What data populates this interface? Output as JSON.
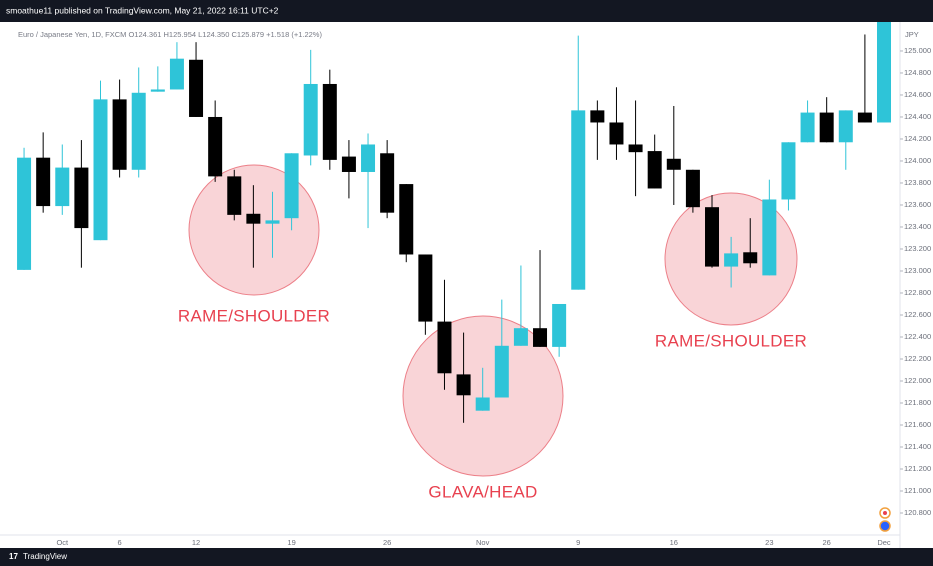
{
  "chart_data": {
    "type": "candlestick",
    "header": "smoathue11 published on TradingView.com, May 21, 2022 16:11 UTC+2",
    "legend_text": "Euro / Japanese Yen, 1D, FXCM O124.361 H125.954 L124.350 C125.879 +1.518 (+1.22%)",
    "footer": "TradingView",
    "y_axis_label": "JPY",
    "annotations": [
      "RAME/SHOULDER",
      "GLAVA/HEAD",
      "RAME/SHOULDER"
    ],
    "up_color": "#2ec4d8",
    "down_color": "#000000",
    "grid": false,
    "categories": [
      null,
      null,
      "Oct",
      null,
      null,
      "6",
      null,
      null,
      null,
      "12",
      null,
      null,
      null,
      null,
      "19",
      null,
      null,
      null,
      null,
      "26",
      null,
      null,
      null,
      null,
      "Nov",
      null,
      null,
      null,
      null,
      "9",
      null,
      null,
      null,
      null,
      "16",
      null,
      null,
      null,
      null,
      "23",
      null,
      null,
      "26",
      null,
      null,
      "Dec"
    ],
    "open": [
      123.01,
      124.03,
      123.59,
      123.94,
      123.28,
      124.56,
      123.92,
      124.63,
      124.65,
      124.92,
      124.4,
      123.86,
      123.52,
      123.43,
      123.48,
      124.05,
      124.7,
      124.04,
      123.9,
      124.07,
      123.79,
      123.15,
      122.54,
      122.06,
      121.73,
      121.85,
      122.32,
      122.48,
      122.31,
      122.83,
      124.46,
      124.35,
      124.15,
      124.09,
      124.02,
      123.92,
      123.58,
      123.04,
      123.17,
      122.96,
      123.65,
      124.17,
      124.44,
      124.17,
      124.44,
      124.35
    ],
    "high": [
      124.12,
      124.26,
      124.15,
      124.19,
      124.73,
      124.74,
      124.85,
      124.86,
      125.08,
      125.08,
      124.55,
      123.92,
      123.78,
      123.72,
      124.07,
      125.01,
      124.83,
      124.19,
      124.25,
      124.19,
      123.79,
      123.15,
      122.92,
      122.44,
      122.12,
      122.74,
      123.05,
      123.19,
      122.7,
      125.14,
      124.55,
      124.67,
      124.55,
      124.24,
      124.5,
      123.92,
      123.69,
      123.31,
      123.48,
      123.83,
      124.17,
      124.55,
      124.58,
      124.46,
      125.15,
      125.28
    ],
    "low": [
      123.01,
      123.53,
      123.51,
      123.03,
      123.28,
      123.85,
      123.85,
      124.63,
      124.65,
      124.4,
      123.81,
      123.46,
      123.03,
      123.12,
      123.37,
      123.96,
      123.92,
      123.66,
      123.39,
      123.48,
      123.08,
      122.42,
      121.92,
      121.62,
      121.73,
      121.85,
      122.32,
      122.31,
      122.22,
      122.83,
      124.01,
      124.01,
      123.68,
      123.75,
      123.6,
      123.53,
      123.03,
      122.85,
      123.03,
      122.96,
      123.55,
      124.17,
      124.17,
      123.92,
      124.35,
      124.35
    ],
    "close": [
      124.03,
      123.59,
      123.94,
      123.39,
      124.56,
      123.92,
      124.62,
      124.65,
      124.93,
      124.4,
      123.86,
      123.51,
      123.43,
      123.46,
      124.07,
      124.7,
      124.01,
      123.9,
      124.15,
      123.53,
      123.15,
      122.54,
      122.07,
      121.87,
      121.85,
      122.32,
      122.48,
      122.31,
      122.7,
      124.46,
      124.35,
      124.15,
      124.08,
      123.75,
      123.92,
      123.58,
      123.04,
      123.16,
      123.07,
      123.65,
      124.17,
      124.44,
      124.17,
      124.46,
      124.35,
      125.28
    ],
    "ylim": [
      120.6,
      125.227
    ],
    "yticks": [
      {
        "value": 125.0,
        "label": "125.000"
      },
      {
        "value": 124.8,
        "label": "124.800"
      },
      {
        "value": 124.6,
        "label": "124.600"
      },
      {
        "value": 124.4,
        "label": "124.400"
      },
      {
        "value": 124.2,
        "label": "124.200"
      },
      {
        "value": 124.0,
        "label": "124.000"
      },
      {
        "value": 123.8,
        "label": "123.800"
      },
      {
        "value": 123.6,
        "label": "123.600"
      },
      {
        "value": 123.4,
        "label": "123.400"
      },
      {
        "value": 123.2,
        "label": "123.200"
      },
      {
        "value": 123.0,
        "label": "123.000"
      },
      {
        "value": 122.8,
        "label": "122.800"
      },
      {
        "value": 122.6,
        "label": "122.600"
      },
      {
        "value": 122.4,
        "label": "122.400"
      },
      {
        "value": 122.2,
        "label": "122.200"
      },
      {
        "value": 122.0,
        "label": "122.000"
      },
      {
        "value": 121.8,
        "label": "121.800"
      },
      {
        "value": 121.6,
        "label": "121.600"
      },
      {
        "value": 121.4,
        "label": "121.400"
      },
      {
        "value": 121.2,
        "label": "121.200"
      },
      {
        "value": 121.0,
        "label": "121.000"
      },
      {
        "value": 120.8,
        "label": "120.800"
      }
    ]
  }
}
